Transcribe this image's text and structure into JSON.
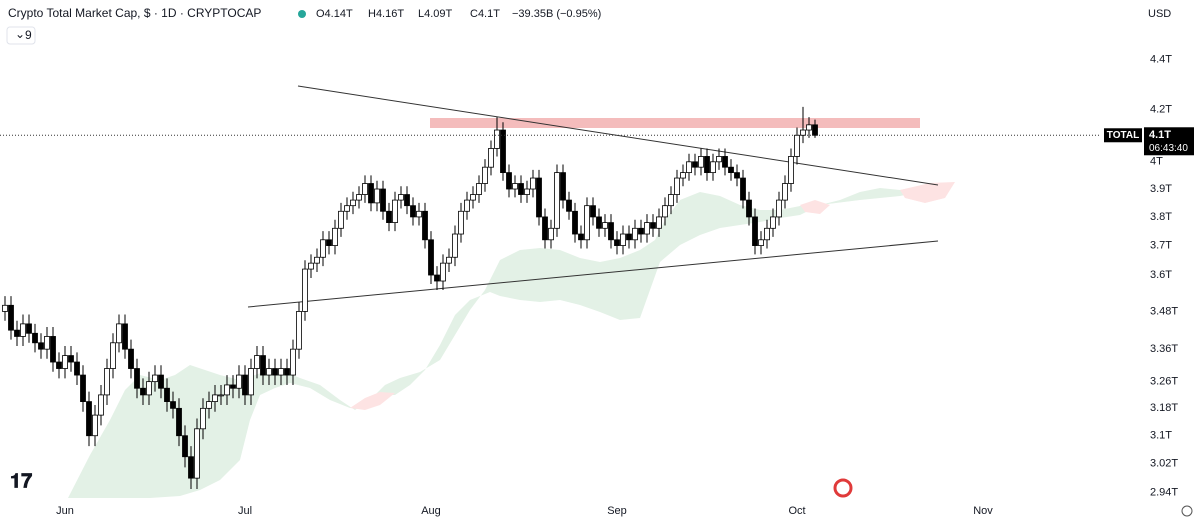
{
  "chart_data": {
    "type": "candlestick",
    "title": "Crypto Total Market Cap, $ · 1D · CRYPTOCAP",
    "ohlc_text": [
      "O4.14T",
      "H4.16T",
      "L4.09T",
      "C4.1T",
      "−39.35B (−0.95%)"
    ],
    "indicators_count": "9",
    "currency": "USD",
    "log_scale": true,
    "up_color": "#ffffff",
    "down_color": "#000000",
    "outline_color": "#000000",
    "ylim": [
      2.92,
      4.65
    ],
    "yticks": [
      {
        "value": 4.4,
        "label": "4.4T"
      },
      {
        "value": 4.2,
        "label": "4.2T"
      },
      {
        "value": 4,
        "label": "4T"
      },
      {
        "value": 3.9,
        "label": "3.9T"
      },
      {
        "value": 3.8,
        "label": "3.8T"
      },
      {
        "value": 3.7,
        "label": "3.7T"
      },
      {
        "value": 3.6,
        "label": "3.6T"
      },
      {
        "value": 3.48,
        "label": "3.48T"
      },
      {
        "value": 3.36,
        "label": "3.36T"
      },
      {
        "value": 3.26,
        "label": "3.26T"
      },
      {
        "value": 3.18,
        "label": "3.18T"
      },
      {
        "value": 3.1,
        "label": "3.1T"
      },
      {
        "value": 3.02,
        "label": "3.02T"
      },
      {
        "value": 2.94,
        "label": "2.94T"
      }
    ],
    "x_labels": [
      "Jun",
      "Jul",
      "Aug",
      "Sep",
      "Oct",
      "Nov"
    ],
    "price_label": {
      "symbol": "TOTAL",
      "price": {
        "value": 4.1,
        "label": "4.1T"
      },
      "countdown": "06:43:40"
    },
    "candles": [
      [
        3.48,
        3.53,
        3.45,
        3.5
      ],
      [
        3.5,
        3.53,
        3.39,
        3.42
      ],
      [
        3.42,
        3.45,
        3.37,
        3.4
      ],
      [
        3.4,
        3.47,
        3.37,
        3.44
      ],
      [
        3.44,
        3.47,
        3.38,
        3.41
      ],
      [
        3.41,
        3.44,
        3.35,
        3.38
      ],
      [
        3.38,
        3.41,
        3.33,
        3.36
      ],
      [
        3.36,
        3.43,
        3.33,
        3.4
      ],
      [
        3.4,
        3.43,
        3.29,
        3.32
      ],
      [
        3.32,
        3.35,
        3.27,
        3.3
      ],
      [
        3.3,
        3.37,
        3.27,
        3.34
      ],
      [
        3.34,
        3.37,
        3.29,
        3.32
      ],
      [
        3.32,
        3.35,
        3.25,
        3.28
      ],
      [
        3.28,
        3.31,
        3.17,
        3.2
      ],
      [
        3.2,
        3.23,
        3.07,
        3.1
      ],
      [
        3.1,
        3.19,
        3.07,
        3.16
      ],
      [
        3.16,
        3.25,
        3.13,
        3.22
      ],
      [
        3.22,
        3.33,
        3.19,
        3.3
      ],
      [
        3.3,
        3.41,
        3.27,
        3.38
      ],
      [
        3.38,
        3.47,
        3.35,
        3.44
      ],
      [
        3.44,
        3.47,
        3.33,
        3.36
      ],
      [
        3.36,
        3.39,
        3.27,
        3.3
      ],
      [
        3.3,
        3.33,
        3.21,
        3.24
      ],
      [
        3.24,
        3.27,
        3.19,
        3.22
      ],
      [
        3.22,
        3.29,
        3.19,
        3.26
      ],
      [
        3.26,
        3.31,
        3.23,
        3.28
      ],
      [
        3.28,
        3.31,
        3.21,
        3.24
      ],
      [
        3.24,
        3.27,
        3.17,
        3.2
      ],
      [
        3.2,
        3.23,
        3.15,
        3.18
      ],
      [
        3.18,
        3.21,
        3.07,
        3.1
      ],
      [
        3.1,
        3.13,
        3.01,
        3.04
      ],
      [
        3.04,
        3.07,
        2.95,
        2.98
      ],
      [
        2.98,
        3.15,
        2.95,
        3.12
      ],
      [
        3.12,
        3.21,
        3.09,
        3.18
      ],
      [
        3.18,
        3.23,
        3.15,
        3.2
      ],
      [
        3.2,
        3.25,
        3.17,
        3.22
      ],
      [
        3.22,
        3.25,
        3.19,
        3.22
      ],
      [
        3.22,
        3.28,
        3.19,
        3.25
      ],
      [
        3.25,
        3.28,
        3.21,
        3.24
      ],
      [
        3.24,
        3.31,
        3.21,
        3.28
      ],
      [
        3.28,
        3.31,
        3.19,
        3.22
      ],
      [
        3.22,
        3.33,
        3.19,
        3.3
      ],
      [
        3.3,
        3.37,
        3.27,
        3.34
      ],
      [
        3.34,
        3.37,
        3.25,
        3.28
      ],
      [
        3.28,
        3.33,
        3.25,
        3.3
      ],
      [
        3.3,
        3.33,
        3.25,
        3.28
      ],
      [
        3.28,
        3.33,
        3.25,
        3.3
      ],
      [
        3.3,
        3.33,
        3.25,
        3.28
      ],
      [
        3.28,
        3.39,
        3.25,
        3.36
      ],
      [
        3.36,
        3.51,
        3.33,
        3.48
      ],
      [
        3.48,
        3.65,
        3.45,
        3.62
      ],
      [
        3.62,
        3.67,
        3.59,
        3.64
      ],
      [
        3.64,
        3.69,
        3.61,
        3.66
      ],
      [
        3.66,
        3.75,
        3.63,
        3.72
      ],
      [
        3.72,
        3.75,
        3.67,
        3.7
      ],
      [
        3.7,
        3.79,
        3.67,
        3.76
      ],
      [
        3.76,
        3.85,
        3.73,
        3.82
      ],
      [
        3.82,
        3.87,
        3.79,
        3.84
      ],
      [
        3.84,
        3.89,
        3.81,
        3.86
      ],
      [
        3.86,
        3.91,
        3.83,
        3.88
      ],
      [
        3.88,
        3.95,
        3.85,
        3.92
      ],
      [
        3.92,
        3.95,
        3.82,
        3.85
      ],
      [
        3.85,
        3.93,
        3.82,
        3.9
      ],
      [
        3.9,
        3.93,
        3.79,
        3.82
      ],
      [
        3.82,
        3.85,
        3.75,
        3.78
      ],
      [
        3.78,
        3.89,
        3.75,
        3.86
      ],
      [
        3.86,
        3.91,
        3.83,
        3.88
      ],
      [
        3.88,
        3.91,
        3.81,
        3.84
      ],
      [
        3.84,
        3.87,
        3.77,
        3.8
      ],
      [
        3.8,
        3.85,
        3.77,
        3.82
      ],
      [
        3.82,
        3.85,
        3.69,
        3.72
      ],
      [
        3.72,
        3.75,
        3.57,
        3.6
      ],
      [
        3.6,
        3.63,
        3.55,
        3.58
      ],
      [
        3.58,
        3.67,
        3.55,
        3.64
      ],
      [
        3.64,
        3.69,
        3.61,
        3.66
      ],
      [
        3.66,
        3.77,
        3.63,
        3.74
      ],
      [
        3.74,
        3.85,
        3.71,
        3.82
      ],
      [
        3.82,
        3.89,
        3.79,
        3.86
      ],
      [
        3.86,
        3.91,
        3.83,
        3.88
      ],
      [
        3.88,
        3.95,
        3.85,
        3.92
      ],
      [
        3.92,
        4.01,
        3.89,
        3.98
      ],
      [
        3.98,
        4.08,
        3.95,
        4.05
      ],
      [
        4.05,
        4.17,
        4.02,
        4.12
      ],
      [
        4.12,
        4.15,
        3.93,
        3.96
      ],
      [
        3.96,
        3.99,
        3.87,
        3.9
      ],
      [
        3.9,
        3.95,
        3.87,
        3.92
      ],
      [
        3.92,
        3.95,
        3.85,
        3.88
      ],
      [
        3.88,
        3.93,
        3.85,
        3.9
      ],
      [
        3.9,
        3.97,
        3.87,
        3.94
      ],
      [
        3.94,
        3.97,
        3.77,
        3.8
      ],
      [
        3.8,
        3.83,
        3.69,
        3.72
      ],
      [
        3.72,
        3.79,
        3.69,
        3.76
      ],
      [
        3.76,
        3.99,
        3.73,
        3.96
      ],
      [
        3.96,
        3.99,
        3.83,
        3.86
      ],
      [
        3.86,
        3.89,
        3.79,
        3.82
      ],
      [
        3.82,
        3.85,
        3.71,
        3.74
      ],
      [
        3.74,
        3.77,
        3.69,
        3.72
      ],
      [
        3.72,
        3.87,
        3.69,
        3.84
      ],
      [
        3.84,
        3.87,
        3.77,
        3.8
      ],
      [
        3.8,
        3.83,
        3.73,
        3.76
      ],
      [
        3.76,
        3.81,
        3.73,
        3.78
      ],
      [
        3.78,
        3.81,
        3.69,
        3.72
      ],
      [
        3.72,
        3.75,
        3.67,
        3.7
      ],
      [
        3.7,
        3.77,
        3.67,
        3.74
      ],
      [
        3.74,
        3.77,
        3.69,
        3.72
      ],
      [
        3.72,
        3.79,
        3.69,
        3.76
      ],
      [
        3.76,
        3.79,
        3.71,
        3.74
      ],
      [
        3.74,
        3.81,
        3.71,
        3.78
      ],
      [
        3.78,
        3.81,
        3.73,
        3.76
      ],
      [
        3.76,
        3.83,
        3.73,
        3.8
      ],
      [
        3.8,
        3.87,
        3.77,
        3.84
      ],
      [
        3.84,
        3.91,
        3.81,
        3.88
      ],
      [
        3.88,
        3.97,
        3.85,
        3.94
      ],
      [
        3.94,
        3.99,
        3.91,
        3.96
      ],
      [
        3.96,
        4.03,
        3.93,
        4.0
      ],
      [
        4.0,
        4.03,
        3.95,
        3.98
      ],
      [
        3.98,
        4.05,
        3.95,
        4.02
      ],
      [
        4.02,
        4.05,
        3.93,
        3.96
      ],
      [
        3.96,
        4.03,
        3.93,
        4.0
      ],
      [
        4.0,
        4.05,
        3.97,
        4.02
      ],
      [
        4.02,
        4.05,
        3.95,
        3.98
      ],
      [
        3.98,
        4.01,
        3.93,
        3.96
      ],
      [
        3.96,
        3.99,
        3.91,
        3.94
      ],
      [
        3.94,
        3.97,
        3.83,
        3.86
      ],
      [
        3.86,
        3.89,
        3.77,
        3.8
      ],
      [
        3.8,
        3.83,
        3.67,
        3.7
      ],
      [
        3.7,
        3.75,
        3.67,
        3.72
      ],
      [
        3.72,
        3.79,
        3.69,
        3.76
      ],
      [
        3.76,
        3.83,
        3.73,
        3.8
      ],
      [
        3.8,
        3.89,
        3.77,
        3.86
      ],
      [
        3.86,
        3.95,
        3.83,
        3.92
      ],
      [
        3.92,
        4.05,
        3.89,
        4.02
      ],
      [
        4.02,
        4.13,
        3.99,
        4.1
      ],
      [
        4.1,
        4.21,
        4.07,
        4.12
      ],
      [
        4.12,
        4.17,
        4.09,
        4.14
      ],
      [
        4.14,
        4.16,
        4.09,
        4.1
      ]
    ]
  }
}
